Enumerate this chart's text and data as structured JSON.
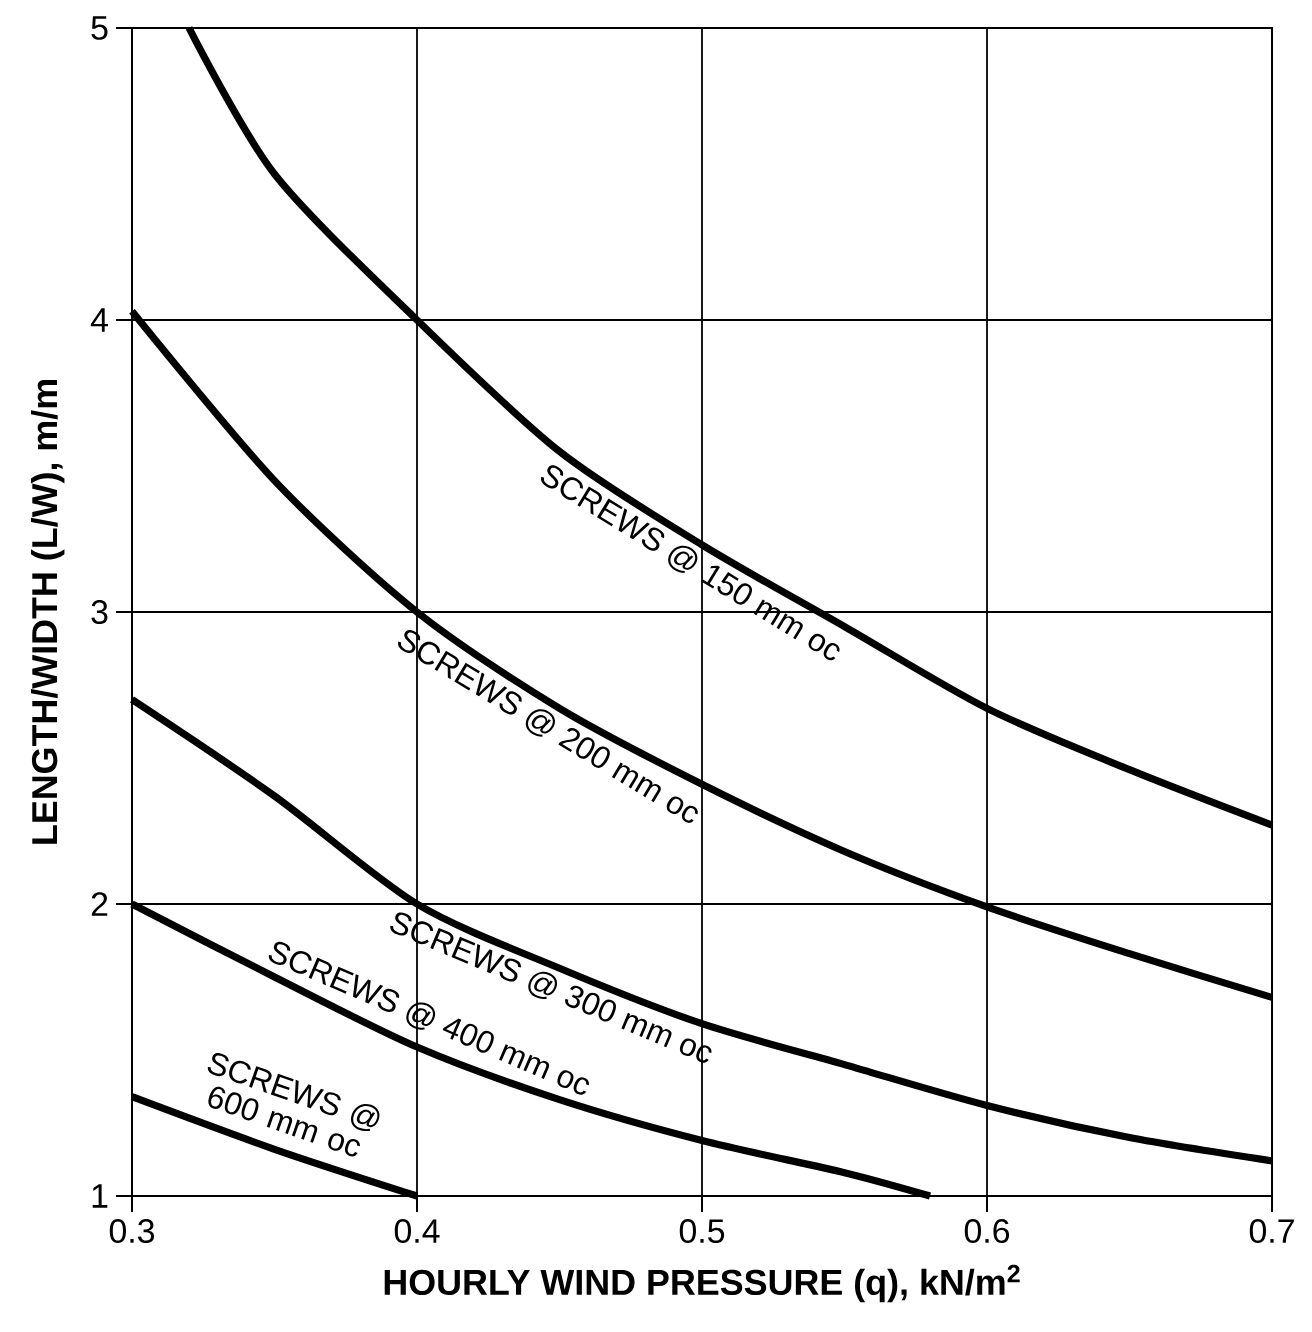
{
  "chart_data": {
    "type": "line",
    "xlabel": "HOURLY WIND PRESSURE (q), kN/m$^{2}$",
    "ylabel": "LENGTH/WIDTH (L/W), m/m",
    "xlim": [
      0.3,
      0.7
    ],
    "xticks": [
      0.3,
      0.4,
      0.5,
      0.6,
      0.7
    ],
    "ylim": [
      1,
      5
    ],
    "yticks": [
      1,
      2,
      3,
      4,
      5
    ],
    "grid": true,
    "marker": "none",
    "line_style": "solid",
    "series": [
      {
        "name": "SCREWS @ 150 mm oc",
        "color": "#000000",
        "x": [
          0.32,
          0.35,
          0.4,
          0.45,
          0.5,
          0.55,
          0.6,
          0.65,
          0.7
        ],
        "values": [
          5,
          4.5,
          4.0,
          3.55,
          3.23,
          2.95,
          2.67,
          2.46,
          2.27
        ]
      },
      {
        "name": "SCREWS @ 200 mm oc",
        "color": "#000000",
        "x": [
          0.3,
          0.35,
          0.4,
          0.45,
          0.5,
          0.55,
          0.6,
          0.65,
          0.7
        ],
        "values": [
          4.03,
          3.45,
          3.0,
          2.67,
          2.41,
          2.18,
          1.99,
          1.83,
          1.68
        ]
      },
      {
        "name": "SCREWS @ 300 mm oc",
        "color": "#000000",
        "x": [
          0.3,
          0.35,
          0.4,
          0.45,
          0.5,
          0.55,
          0.6,
          0.65,
          0.7
        ],
        "values": [
          2.7,
          2.37,
          2.0,
          1.78,
          1.59,
          1.45,
          1.31,
          1.2,
          1.12
        ]
      },
      {
        "name": "SCREWS @ 400 mm oc",
        "color": "#000000",
        "x": [
          0.3,
          0.35,
          0.4,
          0.45,
          0.5,
          0.55,
          0.58
        ],
        "values": [
          2.0,
          1.75,
          1.51,
          1.33,
          1.19,
          1.08,
          1.0
        ]
      },
      {
        "name": "SCREWS @ 600 mm oc",
        "color": "#000000",
        "x": [
          0.3,
          0.35,
          0.4
        ],
        "values": [
          1.34,
          1.16,
          1.0
        ]
      }
    ]
  }
}
